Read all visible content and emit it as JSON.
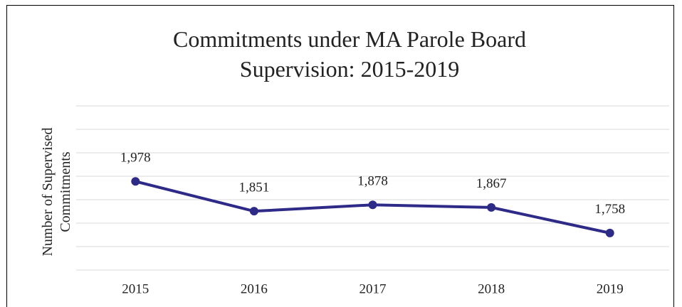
{
  "chart_data": {
    "type": "line",
    "title": "Commitments under MA Parole Board Supervision: 2015-2019",
    "y_label": "Number of Supervised Commitments",
    "categories": [
      "2015",
      "2016",
      "2017",
      "2018",
      "2019"
    ],
    "series": [
      {
        "name": "Commitments",
        "color": "#2e2a87",
        "values": [
          1978,
          1851,
          1878,
          1867,
          1758
        ],
        "value_labels": [
          "1,978",
          "1,851",
          "1,878",
          "1,867",
          "1,758"
        ]
      }
    ],
    "ylim": [
      1600,
      2300
    ],
    "yticks": [
      1600,
      1700,
      1800,
      1900,
      2000,
      2100,
      2200,
      2300
    ],
    "grid": true
  }
}
